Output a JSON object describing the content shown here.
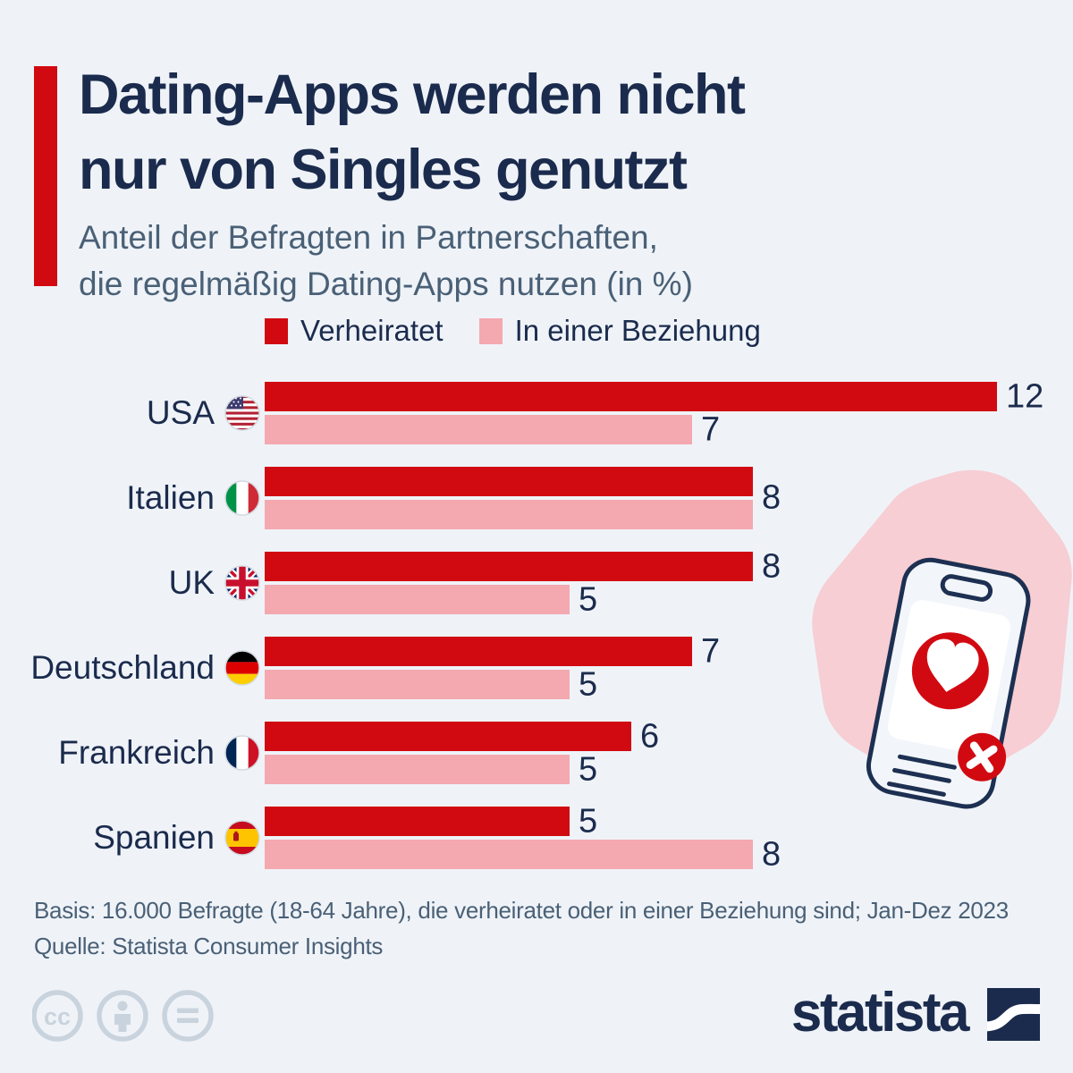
{
  "header": {
    "title_line1": "Dating-Apps werden nicht",
    "title_line2": "nur von Singles genutzt",
    "subtitle_line1": "Anteil der Befragten in Partnerschaften,",
    "subtitle_line2": "die regelmäßig Dating-Apps nutzen (in %)"
  },
  "legend": {
    "items": [
      {
        "label": "Verheiratet",
        "color": "#d10a11"
      },
      {
        "label": "In einer Beziehung",
        "color": "#f4a8af"
      }
    ]
  },
  "chart_data": {
    "type": "bar",
    "orientation": "horizontal",
    "title": "Anteil der Befragten in Partnerschaften, die regelmäßig Dating-Apps nutzen (in %)",
    "categories": [
      "USA",
      "Italien",
      "UK",
      "Deutschland",
      "Frankreich",
      "Spanien"
    ],
    "category_flags": [
      "usa-flag-icon",
      "italy-flag-icon",
      "uk-flag-icon",
      "germany-flag-icon",
      "france-flag-icon",
      "spain-flag-icon"
    ],
    "series": [
      {
        "name": "Verheiratet",
        "color": "#d10a11",
        "values": [
          12,
          8,
          8,
          7,
          6,
          5
        ]
      },
      {
        "name": "In einer Beziehung",
        "color": "#f4a8af",
        "values": [
          7,
          8,
          5,
          5,
          5,
          8
        ]
      }
    ],
    "xlim": [
      0,
      12
    ],
    "unit": "%",
    "value_labels": true,
    "grid": false,
    "legend_position": "top"
  },
  "footer": {
    "basis": "Basis: 16.000 Befragte (18-64 Jahre), die verheiratet oder in einer Beziehung sind; Jan-Dez 2023",
    "source": "Quelle: Statista Consumer Insights"
  },
  "branding": {
    "logo_text": "statista"
  },
  "colors": {
    "background": "#eff3f8",
    "accent_red": "#d10a11",
    "light_pink": "#f4a8af",
    "navy": "#1b2b4d",
    "muted_blue": "#4a6076",
    "blob_pink": "#f6ced3",
    "phone_outline": "#1d3052",
    "cc_gray": "#c9d3dd"
  }
}
